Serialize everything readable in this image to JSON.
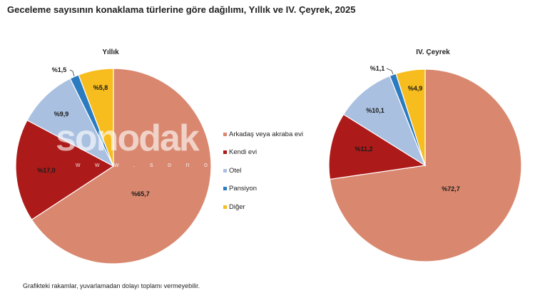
{
  "title": "Geceleme sayısının konaklama türlerine göre dağılımı, Yıllık ve IV. Çeyrek, 2025",
  "footnote": "Grafikteki rakamlar, yuvarlamadan dolayı toplamı vermeyebilir.",
  "watermark": {
    "logo": "sonodak",
    "url": "w w w . s o n o d a k . c"
  },
  "chart_data": [
    {
      "type": "pie",
      "title": "Yıllık",
      "categories": [
        "Arkadaş veya akraba evi",
        "Kendi evi",
        "Otel",
        "Pansiyon",
        "Diğer"
      ],
      "values": [
        65.7,
        17.0,
        9.9,
        1.5,
        5.8
      ],
      "labels": [
        "%65,7",
        "%17,0",
        "%9,9",
        "%1,5",
        "%5,8"
      ],
      "colors": [
        "#d9886f",
        "#ad1a1a",
        "#a9c0e0",
        "#2b7bc0",
        "#f7bd1e"
      ]
    },
    {
      "type": "pie",
      "title": "IV. Çeyrek",
      "categories": [
        "Arkadaş veya akraba evi",
        "Kendi evi",
        "Otel",
        "Pansiyon",
        "Diğer"
      ],
      "values": [
        72.7,
        11.2,
        10.1,
        1.1,
        4.9
      ],
      "labels": [
        "%72,7",
        "%11,2",
        "%10,1",
        "%1,1",
        "%4,9"
      ],
      "colors": [
        "#d9886f",
        "#ad1a1a",
        "#a9c0e0",
        "#2b7bc0",
        "#f7bd1e"
      ]
    }
  ],
  "legend": {
    "placement": "center",
    "items": [
      {
        "label": "Arkadaş veya akraba evi",
        "color": "#d9886f"
      },
      {
        "label": "Kendi evi",
        "color": "#ad1a1a"
      },
      {
        "label": "Otel",
        "color": "#a9c0e0"
      },
      {
        "label": "Pansiyon",
        "color": "#2b7bc0"
      },
      {
        "label": "Diğer",
        "color": "#f7bd1e"
      }
    ]
  }
}
